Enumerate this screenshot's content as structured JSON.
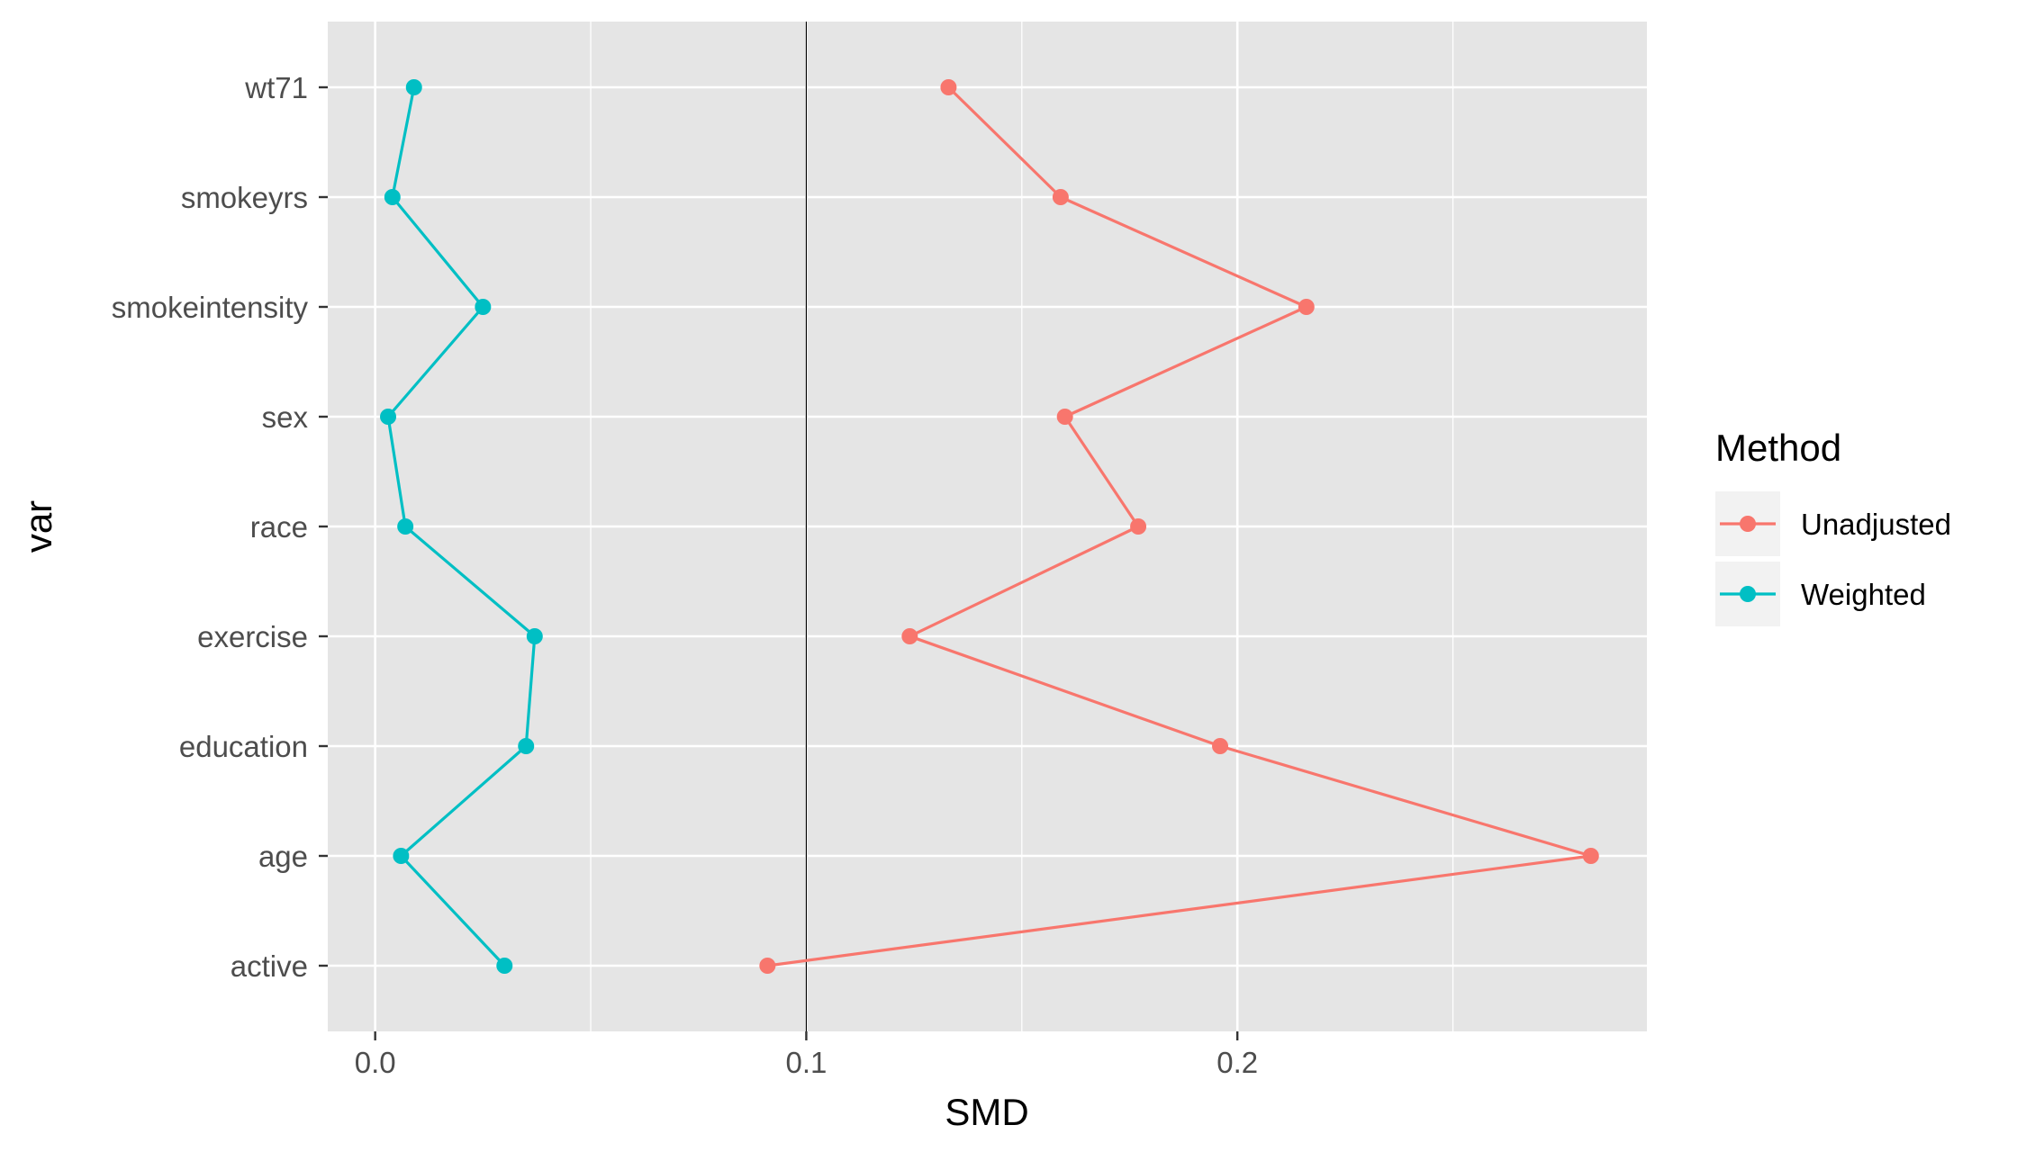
{
  "chart_data": {
    "type": "line",
    "xlabel": "SMD",
    "ylabel": "var",
    "xlim": [
      -0.011,
      0.295
    ],
    "x_ticks": [
      0.0,
      0.1,
      0.2
    ],
    "x_tick_labels": [
      "0.0",
      "0.1",
      "0.2"
    ],
    "categories": [
      "active",
      "age",
      "education",
      "exercise",
      "race",
      "sex",
      "smokeintensity",
      "smokeyrs",
      "wt71"
    ],
    "reference_line": 0.1,
    "grid": true,
    "legend": {
      "title": "Method",
      "position": "right",
      "entries": [
        "Unadjusted",
        "Weighted"
      ]
    },
    "series": [
      {
        "name": "Unadjusted",
        "color": "#F8766D",
        "values": [
          0.091,
          0.282,
          0.196,
          0.124,
          0.177,
          0.16,
          0.216,
          0.159,
          0.133
        ]
      },
      {
        "name": "Weighted",
        "color": "#00BFC4",
        "values": [
          0.03,
          0.006,
          0.035,
          0.037,
          0.007,
          0.003,
          0.025,
          0.004,
          0.009
        ]
      }
    ],
    "panel_background": "#E5E5E5",
    "grid_color": "#FFFFFF"
  }
}
